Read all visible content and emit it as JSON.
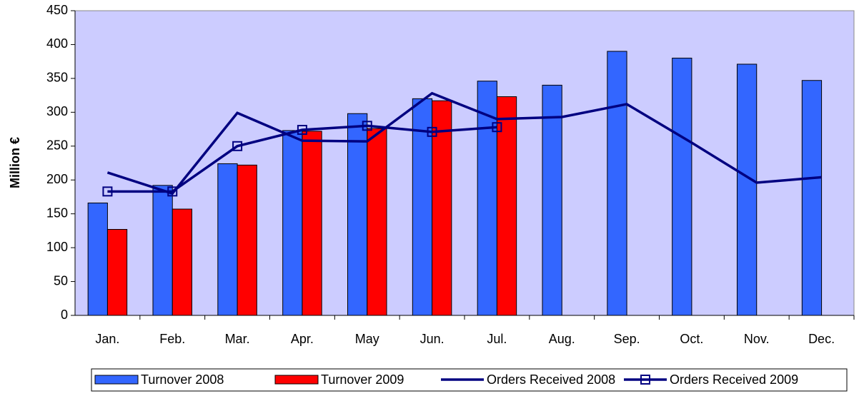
{
  "chart_data": {
    "type": "bar",
    "y_label": "Million €",
    "categories": [
      "Jan.",
      "Feb.",
      "Mar.",
      "Apr.",
      "May",
      "Jun.",
      "Jul.",
      "Aug.",
      "Sep.",
      "Oct.",
      "Nov.",
      "Dec."
    ],
    "series": [
      {
        "name": "Turnover 2008",
        "type": "bar",
        "color": "#3366ff",
        "values": [
          166,
          192,
          224,
          273,
          298,
          320,
          346,
          340,
          390,
          380,
          371,
          347
        ]
      },
      {
        "name": "Turnover 2009",
        "type": "bar",
        "color": "#ff0000",
        "values": [
          127,
          157,
          222,
          272,
          276,
          317,
          323,
          null,
          null,
          null,
          null,
          null
        ]
      },
      {
        "name": "Orders Received 2008",
        "type": "line",
        "color": "#000080",
        "values": [
          211,
          180,
          299,
          258,
          257,
          328,
          290,
          293,
          312,
          255,
          196,
          204
        ]
      },
      {
        "name": "Orders Received 2009",
        "type": "line",
        "marker": "square",
        "color": "#000080",
        "values": [
          183,
          183,
          250,
          274,
          280,
          271,
          278,
          null,
          null,
          null,
          null,
          null
        ]
      }
    ],
    "ylim": [
      0,
      450
    ],
    "yticks": [
      0,
      50,
      100,
      150,
      200,
      250,
      300,
      350,
      400,
      450
    ],
    "plot_background": "#ccccff",
    "legend": "bottom"
  }
}
